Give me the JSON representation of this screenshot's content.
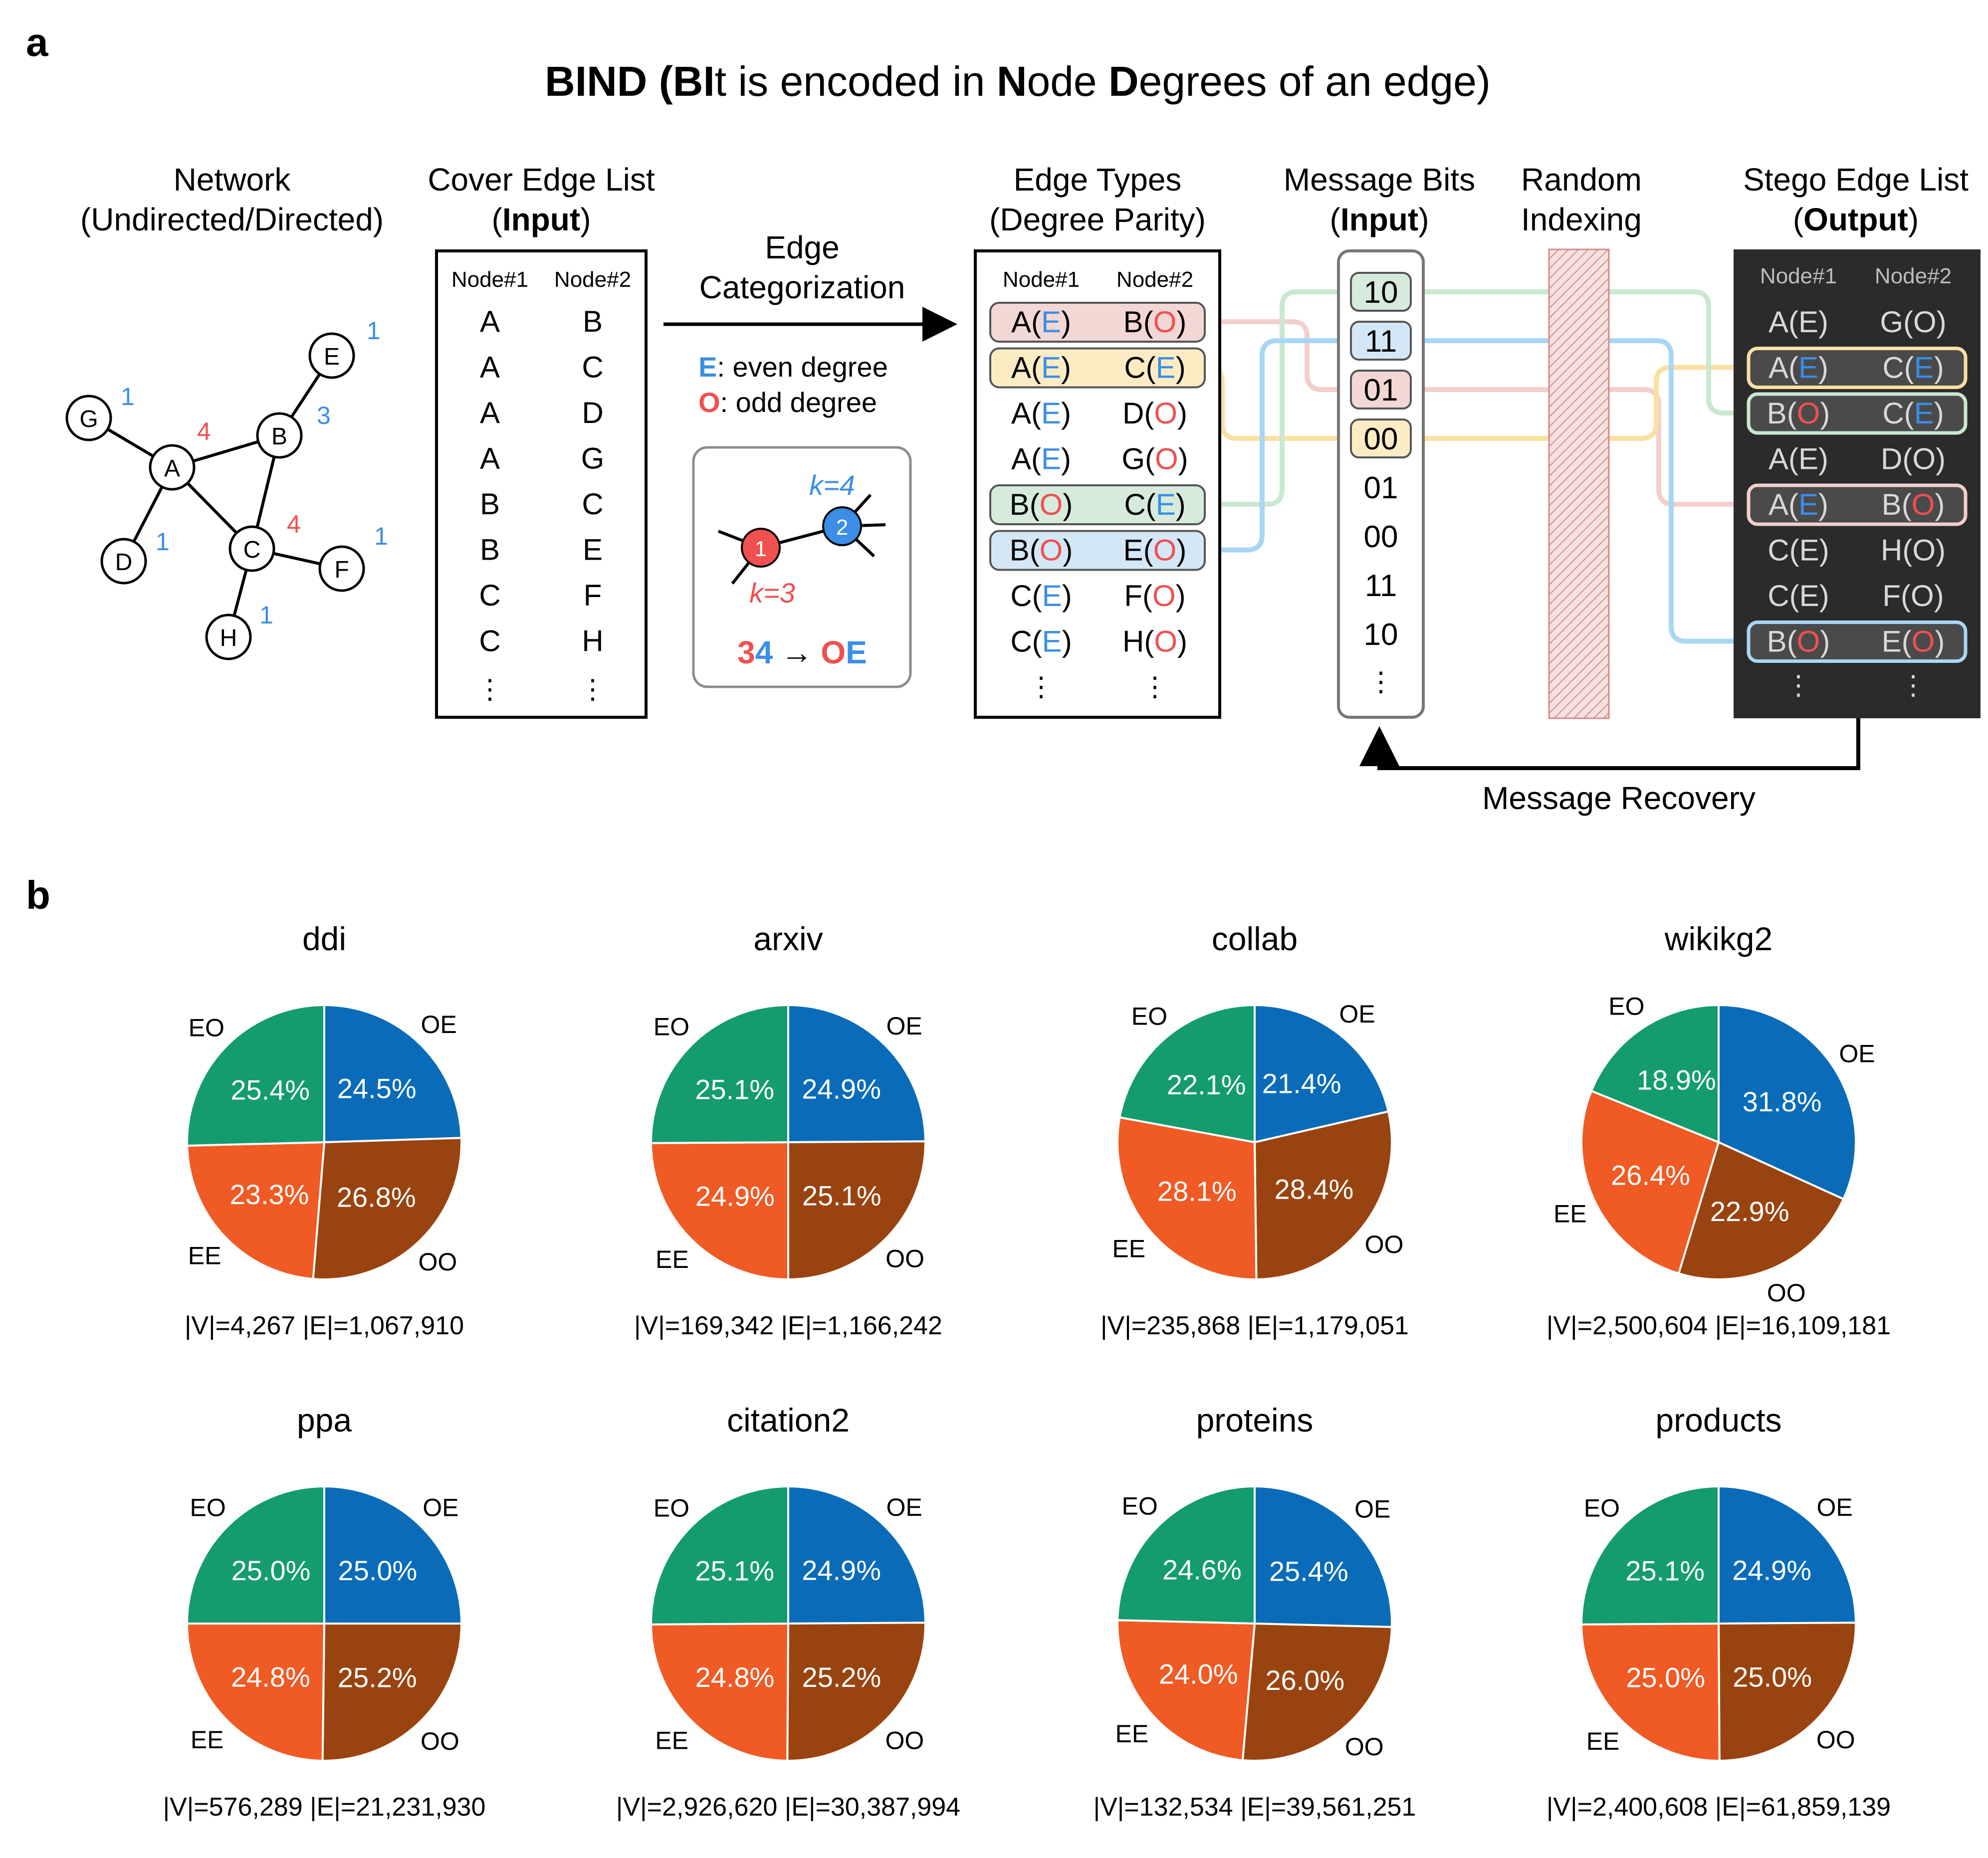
{
  "colors": {
    "even": "#3a8ee6",
    "odd": "#f05050",
    "oe": "#0a6cb8",
    "ee": "#f05a24",
    "oo": "#994410",
    "eo": "#149c6e",
    "row_red": "#f3d7d4",
    "row_yellow": "#fcecc4",
    "row_green": "#d6ebdb",
    "row_blue": "#d4e7f7",
    "line_red": "#f3cfcc",
    "line_yellow": "#fbe0a2",
    "line_green": "#c9e8cf",
    "line_blue": "#a8d7f5",
    "stego_bg": "#2b2b2b",
    "stego_text": "#d8d8d8"
  },
  "panel_a": {
    "label": "a",
    "title": {
      "pre": "BIND (",
      "b1": "BI",
      "t2": "t is encoded in ",
      "b2": "N",
      "t3": "ode ",
      "b3": "D",
      "t4": "egrees of an edge)"
    },
    "network": {
      "title1": "Network",
      "title2": "(Undirected/Directed)",
      "nodes": [
        {
          "id": "G",
          "degree": "1"
        },
        {
          "id": "A",
          "degree": "4"
        },
        {
          "id": "B",
          "degree": "3"
        },
        {
          "id": "E",
          "degree": "1"
        },
        {
          "id": "C",
          "degree": "4"
        },
        {
          "id": "D",
          "degree": "1"
        },
        {
          "id": "F",
          "degree": "1"
        },
        {
          "id": "H",
          "degree": "1"
        }
      ]
    },
    "cover": {
      "title1": "Cover Edge List",
      "title2_pre": "(",
      "title2_bold": "Input",
      "title2_post": ")",
      "col1": "Node#1",
      "col2": "Node#2",
      "rows": [
        [
          "A",
          "B"
        ],
        [
          "A",
          "C"
        ],
        [
          "A",
          "D"
        ],
        [
          "A",
          "G"
        ],
        [
          "B",
          "C"
        ],
        [
          "B",
          "E"
        ],
        [
          "C",
          "F"
        ],
        [
          "C",
          "H"
        ]
      ],
      "ellipsis": "⋮"
    },
    "categorization": {
      "title1": "Edge",
      "title2": "Categorization",
      "e_letter": "E",
      "e_text": ": even degree",
      "o_letter": "O",
      "o_text": ": odd degree",
      "k1": "k=4",
      "k2": "k=3",
      "n1": "1",
      "n2": "2",
      "r_a": "3",
      "r_b": "4",
      "arrow": "→",
      "r_c": "O",
      "r_d": "E"
    },
    "edge_types": {
      "title1": "Edge Types",
      "title2": "(Degree Parity)",
      "col1": "Node#1",
      "col2": "Node#2",
      "rows": [
        [
          {
            "n": "A",
            "p": "E"
          },
          {
            "n": "B",
            "p": "O"
          }
        ],
        [
          {
            "n": "A",
            "p": "E"
          },
          {
            "n": "C",
            "p": "E"
          }
        ],
        [
          {
            "n": "A",
            "p": "E"
          },
          {
            "n": "D",
            "p": "O"
          }
        ],
        [
          {
            "n": "A",
            "p": "E"
          },
          {
            "n": "G",
            "p": "O"
          }
        ],
        [
          {
            "n": "B",
            "p": "O"
          },
          {
            "n": "C",
            "p": "E"
          }
        ],
        [
          {
            "n": "B",
            "p": "O"
          },
          {
            "n": "E",
            "p": "O"
          }
        ],
        [
          {
            "n": "C",
            "p": "E"
          },
          {
            "n": "F",
            "p": "O"
          }
        ],
        [
          {
            "n": "C",
            "p": "E"
          },
          {
            "n": "H",
            "p": "O"
          }
        ]
      ],
      "ellipsis": "⋮"
    },
    "message": {
      "title1": "Message Bits",
      "title2_pre": "(",
      "title2_bold": "Input",
      "title2_post": ")",
      "bits": [
        "10",
        "11",
        "01",
        "00",
        "01",
        "00",
        "11",
        "10"
      ],
      "ellipsis": "⋮"
    },
    "random": {
      "title1": "Random",
      "title2": "Indexing"
    },
    "stego": {
      "title1": "Stego Edge List",
      "title2_pre": "(",
      "title2_bold": "Output",
      "title2_post": ")",
      "col1": "Node#1",
      "col2": "Node#2",
      "rows": [
        [
          {
            "n": "A",
            "p": "E"
          },
          {
            "n": "G",
            "p": "O"
          }
        ],
        [
          {
            "n": "A",
            "p": "E"
          },
          {
            "n": "C",
            "p": "E"
          }
        ],
        [
          {
            "n": "B",
            "p": "O"
          },
          {
            "n": "C",
            "p": "E"
          }
        ],
        [
          {
            "n": "A",
            "p": "E"
          },
          {
            "n": "D",
            "p": "O"
          }
        ],
        [
          {
            "n": "A",
            "p": "E"
          },
          {
            "n": "B",
            "p": "O"
          }
        ],
        [
          {
            "n": "C",
            "p": "E"
          },
          {
            "n": "H",
            "p": "O"
          }
        ],
        [
          {
            "n": "C",
            "p": "E"
          },
          {
            "n": "F",
            "p": "O"
          }
        ],
        [
          {
            "n": "B",
            "p": "O"
          },
          {
            "n": "E",
            "p": "O"
          }
        ]
      ],
      "ellipsis": "⋮"
    },
    "recovery": "Message Recovery"
  },
  "panel_b": {
    "label": "b",
    "chart_data": [
      {
        "type": "pie",
        "title": "ddi",
        "order": [
          "OE",
          "OO",
          "EE",
          "EO"
        ],
        "labels": {
          "OE": "OE",
          "OO": "OO",
          "EE": "EE",
          "EO": "EO"
        },
        "values": {
          "OE": 24.5,
          "OO": 26.8,
          "EE": 23.3,
          "EO": 25.4
        },
        "texts": {
          "OE": "24.5%",
          "OO": "26.8%",
          "EE": "23.3%",
          "EO": "25.4%"
        },
        "stats": "|V|=4,267 |E|=1,067,910"
      },
      {
        "type": "pie",
        "title": "arxiv",
        "order": [
          "OE",
          "OO",
          "EE",
          "EO"
        ],
        "labels": {
          "OE": "OE",
          "OO": "OO",
          "EE": "EE",
          "EO": "EO"
        },
        "values": {
          "OE": 24.9,
          "OO": 25.1,
          "EE": 24.9,
          "EO": 25.1
        },
        "texts": {
          "OE": "24.9%",
          "OO": "25.1%",
          "EE": "24.9%",
          "EO": "25.1%"
        },
        "stats": "|V|=169,342 |E|=1,166,242"
      },
      {
        "type": "pie",
        "title": "collab",
        "order": [
          "OE",
          "OO",
          "EE",
          "EO"
        ],
        "labels": {
          "OE": "OE",
          "OO": "OO",
          "EE": "EE",
          "EO": "EO"
        },
        "values": {
          "OE": 21.4,
          "OO": 28.4,
          "EE": 28.1,
          "EO": 22.1
        },
        "texts": {
          "OE": "21.4%",
          "OO": "28.4%",
          "EE": "28.1%",
          "EO": "22.1%"
        },
        "stats": "|V|=235,868 |E|=1,179,051"
      },
      {
        "type": "pie",
        "title": "wikikg2",
        "order": [
          "OE",
          "OO",
          "EE",
          "EO"
        ],
        "labels": {
          "OE": "OE",
          "OO": "OO",
          "EE": "EE",
          "EO": "EO"
        },
        "values": {
          "OE": 31.8,
          "OO": 22.9,
          "EE": 26.4,
          "EO": 18.9
        },
        "texts": {
          "OE": "31.8%",
          "OO": "22.9%",
          "EE": "26.4%",
          "EO": "18.9%"
        },
        "stats": "|V|=2,500,604 |E|=16,109,181"
      },
      {
        "type": "pie",
        "title": "ppa",
        "order": [
          "OE",
          "OO",
          "EE",
          "EO"
        ],
        "labels": {
          "OE": "OE",
          "OO": "OO",
          "EE": "EE",
          "EO": "EO"
        },
        "values": {
          "OE": 25.0,
          "OO": 25.2,
          "EE": 24.8,
          "EO": 25.0
        },
        "texts": {
          "OE": "25.0%",
          "OO": "25.2%",
          "EE": "24.8%",
          "EO": "25.0%"
        },
        "stats": "|V|=576,289 |E|=21,231,930"
      },
      {
        "type": "pie",
        "title": "citation2",
        "order": [
          "OE",
          "OO",
          "EE",
          "EO"
        ],
        "labels": {
          "OE": "OE",
          "OO": "OO",
          "EE": "EE",
          "EO": "EO"
        },
        "values": {
          "OE": 24.9,
          "OO": 25.2,
          "EE": 24.8,
          "EO": 25.1
        },
        "texts": {
          "OE": "24.9%",
          "OO": "25.2%",
          "EE": "24.8%",
          "EO": "25.1%"
        },
        "stats": "|V|=2,926,620 |E|=30,387,994"
      },
      {
        "type": "pie",
        "title": "proteins",
        "order": [
          "OE",
          "OO",
          "EE",
          "EO"
        ],
        "labels": {
          "OE": "OE",
          "OO": "OO",
          "EE": "EE",
          "EO": "EO"
        },
        "values": {
          "OE": 25.4,
          "OO": 26.0,
          "EE": 24.0,
          "EO": 24.6
        },
        "texts": {
          "OE": "25.4%",
          "OO": "26.0%",
          "EE": "24.0%",
          "EO": "24.6%"
        },
        "stats": "|V|=132,534 |E|=39,561,251"
      },
      {
        "type": "pie",
        "title": "products",
        "order": [
          "OE",
          "OO",
          "EE",
          "EO"
        ],
        "labels": {
          "OE": "OE",
          "OO": "OO",
          "EE": "EE",
          "EO": "EO"
        },
        "values": {
          "OE": 24.9,
          "OO": 25.0,
          "EE": 25.0,
          "EO": 25.1
        },
        "texts": {
          "OE": "24.9%",
          "OO": "25.0%",
          "EE": "25.0%",
          "EO": "25.1%"
        },
        "stats": "|V|=2,400,608 |E|=61,859,139"
      }
    ]
  }
}
